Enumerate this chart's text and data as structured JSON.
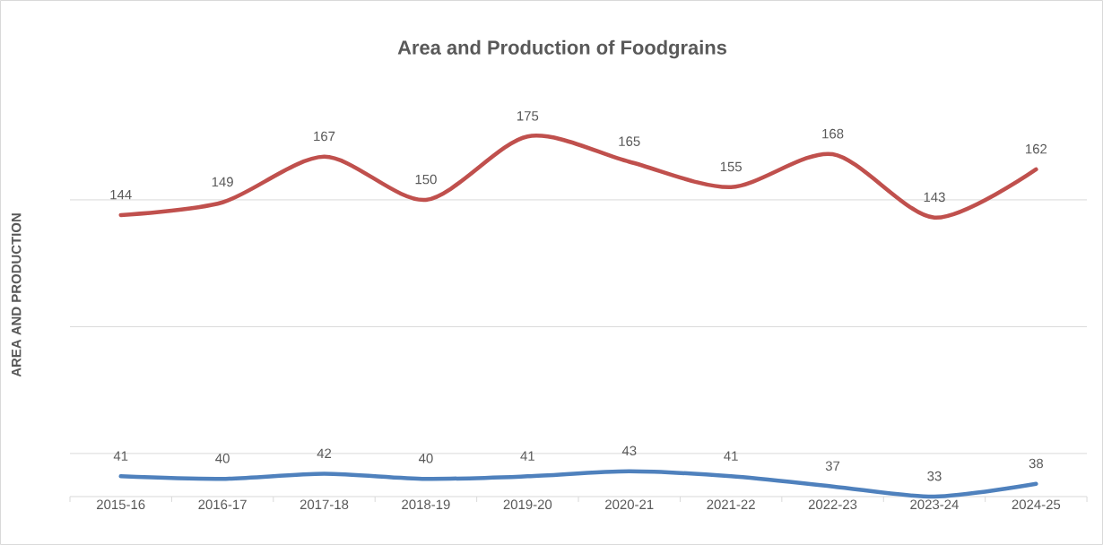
{
  "chart_data": {
    "type": "line",
    "title": "Area and Production of Foodgrains",
    "ylabel": "AREA AND PRODUCTION",
    "categories": [
      "2015-16",
      "2016-17",
      "2017-18",
      "2018-19",
      "2019-20",
      "2020-21",
      "2021-22",
      "2022-23",
      "2023-24",
      "2024-25"
    ],
    "series": [
      {
        "color": "#c0504d",
        "values": [
          144,
          149,
          167,
          150,
          175,
          165,
          155,
          168,
          143,
          162
        ]
      },
      {
        "color": "#4f81bd",
        "values": [
          41,
          40,
          42,
          40,
          41,
          43,
          41,
          37,
          33,
          38
        ]
      }
    ],
    "grid": "y",
    "data_labels": true,
    "marker": "none",
    "line_style": "solid"
  }
}
